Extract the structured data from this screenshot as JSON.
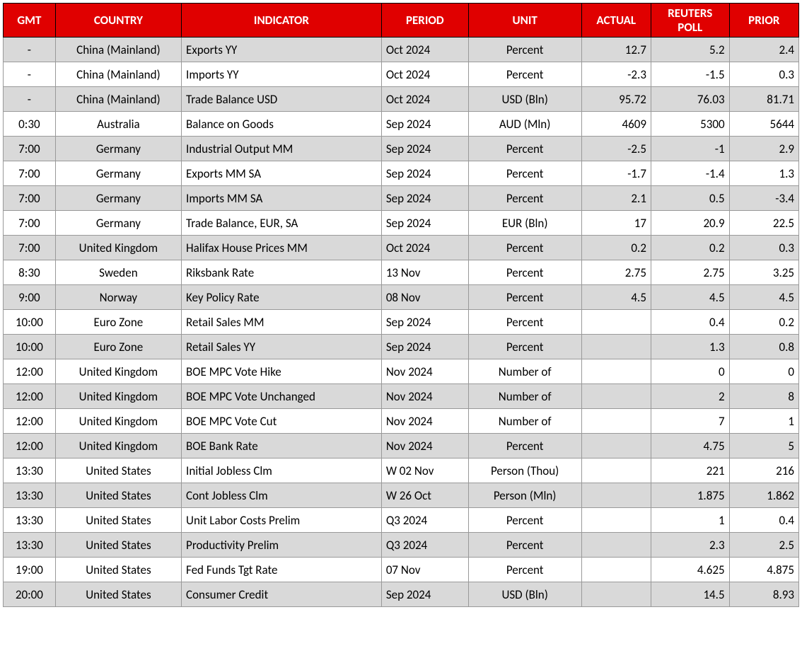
{
  "table": {
    "header_bg": "#e00000",
    "header_fg": "#ffffff",
    "row_alt_bg": "#d9d9d9",
    "row_bg": "#ffffff",
    "border_color": "#999999",
    "font_family": "Calibri, Arial, sans-serif",
    "font_size_pt": 13,
    "columns": [
      {
        "key": "gmt",
        "label": "GMT",
        "align": "center",
        "width_pct": 6
      },
      {
        "key": "country",
        "label": "COUNTRY",
        "align": "center",
        "width_pct": 14.5
      },
      {
        "key": "indicator",
        "label": "INDICATOR",
        "align": "left",
        "width_pct": 23
      },
      {
        "key": "period",
        "label": "PERIOD",
        "align": "left",
        "width_pct": 10
      },
      {
        "key": "unit",
        "label": "UNIT",
        "align": "center",
        "width_pct": 13
      },
      {
        "key": "actual",
        "label": "ACTUAL",
        "align": "right",
        "width_pct": 8
      },
      {
        "key": "poll",
        "label": "REUTERS POLL",
        "align": "right",
        "width_pct": 9
      },
      {
        "key": "prior",
        "label": "PRIOR",
        "align": "right",
        "width_pct": 8
      }
    ],
    "rows": [
      {
        "gmt": "-",
        "country": "China (Mainland)",
        "indicator": "Exports YY",
        "period": "Oct 2024",
        "unit": "Percent",
        "actual": "12.7",
        "poll": "5.2",
        "prior": "2.4"
      },
      {
        "gmt": "-",
        "country": "China (Mainland)",
        "indicator": "Imports YY",
        "period": "Oct 2024",
        "unit": "Percent",
        "actual": "-2.3",
        "poll": "-1.5",
        "prior": "0.3"
      },
      {
        "gmt": "-",
        "country": "China (Mainland)",
        "indicator": "Trade Balance USD",
        "period": "Oct 2024",
        "unit": "USD (Bln)",
        "actual": "95.72",
        "poll": "76.03",
        "prior": "81.71"
      },
      {
        "gmt": "0:30",
        "country": "Australia",
        "indicator": "Balance on Goods",
        "period": "Sep 2024",
        "unit": "AUD (Mln)",
        "actual": "4609",
        "poll": "5300",
        "prior": "5644"
      },
      {
        "gmt": "7:00",
        "country": "Germany",
        "indicator": "Industrial Output MM",
        "period": "Sep 2024",
        "unit": "Percent",
        "actual": "-2.5",
        "poll": "-1",
        "prior": "2.9"
      },
      {
        "gmt": "7:00",
        "country": "Germany",
        "indicator": "Exports MM SA",
        "period": "Sep 2024",
        "unit": "Percent",
        "actual": "-1.7",
        "poll": "-1.4",
        "prior": "1.3"
      },
      {
        "gmt": "7:00",
        "country": "Germany",
        "indicator": "Imports MM SA",
        "period": "Sep 2024",
        "unit": "Percent",
        "actual": "2.1",
        "poll": "0.5",
        "prior": "-3.4"
      },
      {
        "gmt": "7:00",
        "country": "Germany",
        "indicator": "Trade Balance, EUR, SA",
        "period": "Sep 2024",
        "unit": "EUR (Bln)",
        "actual": "17",
        "poll": "20.9",
        "prior": "22.5"
      },
      {
        "gmt": "7:00",
        "country": "United Kingdom",
        "indicator": "Halifax House Prices MM",
        "period": "Oct 2024",
        "unit": "Percent",
        "actual": "0.2",
        "poll": "0.2",
        "prior": "0.3"
      },
      {
        "gmt": "8:30",
        "country": "Sweden",
        "indicator": "Riksbank Rate",
        "period": "13 Nov",
        "unit": "Percent",
        "actual": "2.75",
        "poll": "2.75",
        "prior": "3.25"
      },
      {
        "gmt": "9:00",
        "country": "Norway",
        "indicator": "Key Policy Rate",
        "period": "08 Nov",
        "unit": "Percent",
        "actual": "4.5",
        "poll": "4.5",
        "prior": "4.5"
      },
      {
        "gmt": "10:00",
        "country": "Euro Zone",
        "indicator": "Retail Sales MM",
        "period": "Sep 2024",
        "unit": "Percent",
        "actual": "",
        "poll": "0.4",
        "prior": "0.2"
      },
      {
        "gmt": "10:00",
        "country": "Euro Zone",
        "indicator": "Retail Sales YY",
        "period": "Sep 2024",
        "unit": "Percent",
        "actual": "",
        "poll": "1.3",
        "prior": "0.8"
      },
      {
        "gmt": "12:00",
        "country": "United Kingdom",
        "indicator": "BOE MPC Vote Hike",
        "period": "Nov 2024",
        "unit": "Number of",
        "actual": "",
        "poll": "0",
        "prior": "0"
      },
      {
        "gmt": "12:00",
        "country": "United Kingdom",
        "indicator": "BOE MPC Vote Unchanged",
        "period": "Nov 2024",
        "unit": "Number of",
        "actual": "",
        "poll": "2",
        "prior": "8"
      },
      {
        "gmt": "12:00",
        "country": "United Kingdom",
        "indicator": "BOE MPC Vote Cut",
        "period": "Nov 2024",
        "unit": "Number of",
        "actual": "",
        "poll": "7",
        "prior": "1"
      },
      {
        "gmt": "12:00",
        "country": "United Kingdom",
        "indicator": "BOE Bank Rate",
        "period": "Nov 2024",
        "unit": "Percent",
        "actual": "",
        "poll": "4.75",
        "prior": "5"
      },
      {
        "gmt": "13:30",
        "country": "United States",
        "indicator": "Initial Jobless Clm",
        "period": "W 02 Nov",
        "unit": "Person (Thou)",
        "actual": "",
        "poll": "221",
        "prior": "216"
      },
      {
        "gmt": "13:30",
        "country": "United States",
        "indicator": "Cont Jobless Clm",
        "period": "W 26 Oct",
        "unit": "Person (Mln)",
        "actual": "",
        "poll": "1.875",
        "prior": "1.862"
      },
      {
        "gmt": "13:30",
        "country": "United States",
        "indicator": "Unit Labor Costs Prelim",
        "period": "Q3 2024",
        "unit": "Percent",
        "actual": "",
        "poll": "1",
        "prior": "0.4"
      },
      {
        "gmt": "13:30",
        "country": "United States",
        "indicator": "Productivity Prelim",
        "period": "Q3 2024",
        "unit": "Percent",
        "actual": "",
        "poll": "2.3",
        "prior": "2.5"
      },
      {
        "gmt": "19:00",
        "country": "United States",
        "indicator": "Fed Funds Tgt Rate",
        "period": "07 Nov",
        "unit": "Percent",
        "actual": "",
        "poll": "4.625",
        "prior": "4.875"
      },
      {
        "gmt": "20:00",
        "country": "United States",
        "indicator": "Consumer Credit",
        "period": "Sep 2024",
        "unit": "USD (Bln)",
        "actual": "",
        "poll": "14.5",
        "prior": "8.93"
      }
    ]
  }
}
